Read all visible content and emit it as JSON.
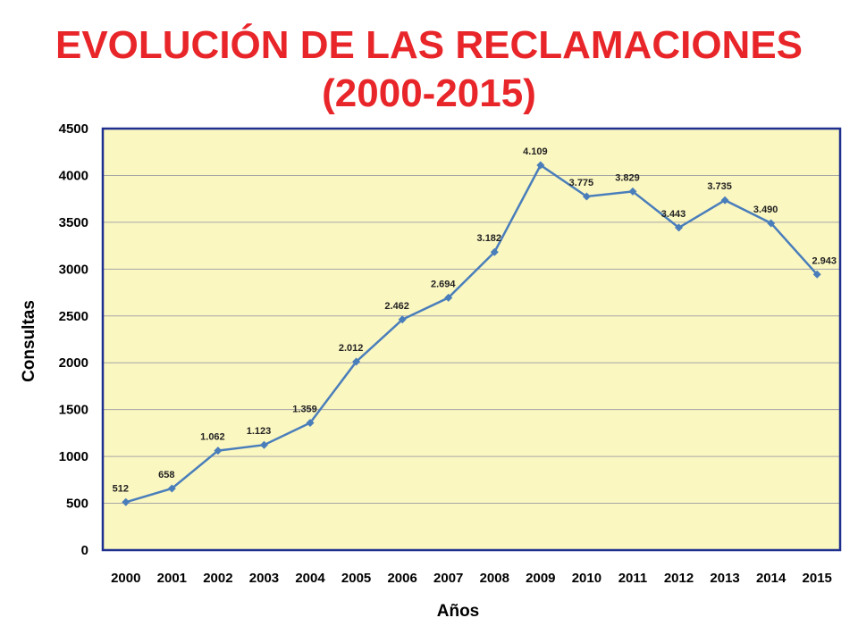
{
  "chart_data": {
    "type": "line",
    "title": "EVOLUCIÓN DE LAS RECLAMACIONES",
    "subtitle": "(2000-2015)",
    "xlabel": "Años",
    "ylabel": "Consultas",
    "ylim": [
      0,
      4500
    ],
    "yticks": [
      "0",
      "500",
      "1000",
      "1500",
      "2000",
      "2500",
      "3000",
      "3500",
      "4000",
      "4500"
    ],
    "ytick_values": [
      0,
      500,
      1000,
      1500,
      2000,
      2500,
      3000,
      3500,
      4000,
      4500
    ],
    "grid": true,
    "categories": [
      "2000",
      "2001",
      "2002",
      "2003",
      "2004",
      "2005",
      "2006",
      "2007",
      "2008",
      "2009",
      "2010",
      "2011",
      "2012",
      "2013",
      "2014",
      "2015"
    ],
    "values": [
      512,
      658,
      1062,
      1123,
      1359,
      2012,
      2462,
      2694,
      3182,
      4109,
      3775,
      3829,
      3443,
      3735,
      3490,
      2943
    ],
    "data_labels": [
      "512",
      "658",
      "1.062",
      "1.123",
      "1.359",
      "2.012",
      "2.462",
      "2.694",
      "3.182",
      "4.109",
      "3.775",
      "3.829",
      "3.443",
      "3.735",
      "3.490",
      "2.943"
    ],
    "colors": {
      "line": "#4a7ebb",
      "plot_background": "#fbf7c1",
      "plot_border": "#1f2f8f",
      "title": "#e8262a",
      "grid": "#a6a6a6"
    }
  }
}
